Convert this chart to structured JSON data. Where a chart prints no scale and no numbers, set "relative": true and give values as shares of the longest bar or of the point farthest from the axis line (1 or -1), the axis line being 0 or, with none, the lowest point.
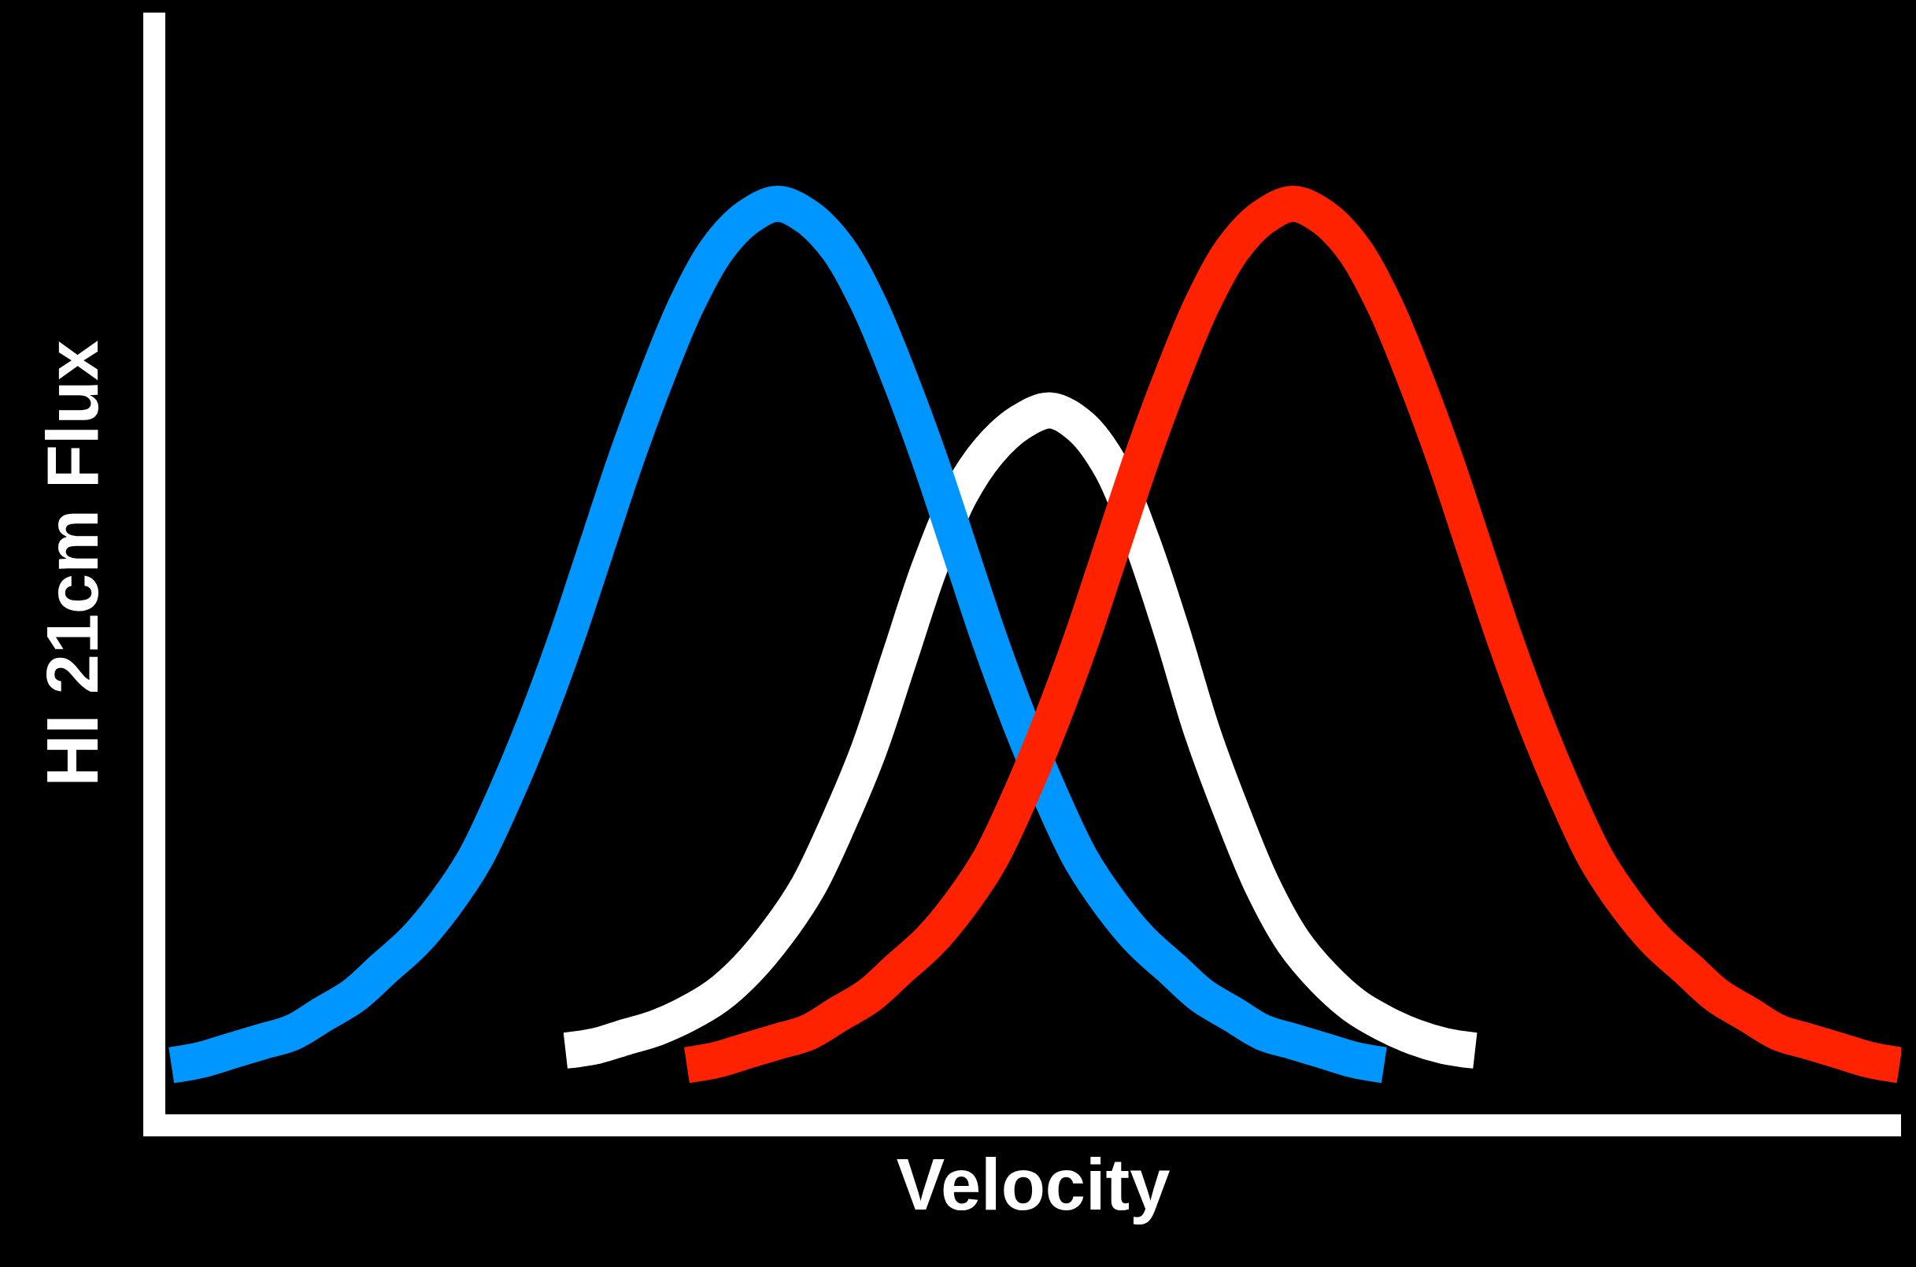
{
  "chart_data": {
    "type": "line",
    "relative": true,
    "xlabel": "Velocity",
    "ylabel": "HI 21cm Flux",
    "grid": false,
    "marker": "none",
    "categories": [
      null,
      null,
      null,
      null,
      null,
      null,
      null,
      null,
      null,
      null,
      null,
      null,
      null,
      null,
      null,
      null,
      null,
      null,
      null,
      null,
      null,
      null,
      null,
      null,
      null,
      null,
      null,
      null,
      null,
      null,
      null,
      null,
      null,
      null,
      null,
      null,
      null,
      null,
      null,
      null,
      null,
      null,
      null,
      null,
      null,
      null,
      null,
      null,
      null,
      null,
      null,
      null,
      null,
      null,
      null,
      null,
      null,
      null
    ],
    "series": [
      {
        "color": "#ffffff",
        "values": [
          null,
          null,
          null,
          null,
          null,
          null,
          null,
          null,
          null,
          null,
          null,
          null,
          null,
          0.07,
          0.075,
          0.085,
          0.095,
          0.11,
          0.13,
          0.16,
          0.2,
          0.25,
          0.32,
          0.4,
          0.5,
          0.6,
          0.68,
          0.73,
          0.76,
          0.773,
          0.755,
          0.71,
          0.63,
          0.53,
          0.42,
          0.33,
          0.25,
          0.19,
          0.15,
          0.12,
          0.1,
          0.085,
          0.075,
          0.07,
          null,
          null,
          null,
          null,
          null,
          null,
          null,
          null,
          null,
          null,
          null,
          null,
          null,
          null
        ]
      },
      {
        "color": "#0096ff",
        "values": [
          0.054,
          0.06,
          0.07,
          0.08,
          0.09,
          0.11,
          0.13,
          0.16,
          0.19,
          0.23,
          0.28,
          0.35,
          0.43,
          0.52,
          0.62,
          0.72,
          0.81,
          0.89,
          0.95,
          0.985,
          1.0,
          0.985,
          0.95,
          0.89,
          0.81,
          0.72,
          0.62,
          0.52,
          0.43,
          0.35,
          0.28,
          0.23,
          0.19,
          0.16,
          0.13,
          0.11,
          0.09,
          0.08,
          0.07,
          0.06,
          0.054,
          null,
          null,
          null,
          null,
          null,
          null,
          null,
          null,
          null,
          null,
          null,
          null,
          null,
          null,
          null,
          null,
          null
        ]
      },
      {
        "color": "#ff2200",
        "values": [
          null,
          null,
          null,
          null,
          null,
          null,
          null,
          null,
          null,
          null,
          null,
          null,
          null,
          null,
          null,
          null,
          null,
          0.054,
          0.06,
          0.07,
          0.08,
          0.09,
          0.11,
          0.13,
          0.16,
          0.19,
          0.23,
          0.28,
          0.35,
          0.43,
          0.52,
          0.62,
          0.72,
          0.81,
          0.89,
          0.95,
          0.985,
          1.0,
          0.985,
          0.95,
          0.89,
          0.81,
          0.72,
          0.62,
          0.52,
          0.43,
          0.35,
          0.28,
          0.23,
          0.19,
          0.16,
          0.13,
          0.11,
          0.09,
          0.08,
          0.07,
          0.06,
          0.054
        ]
      }
    ]
  }
}
